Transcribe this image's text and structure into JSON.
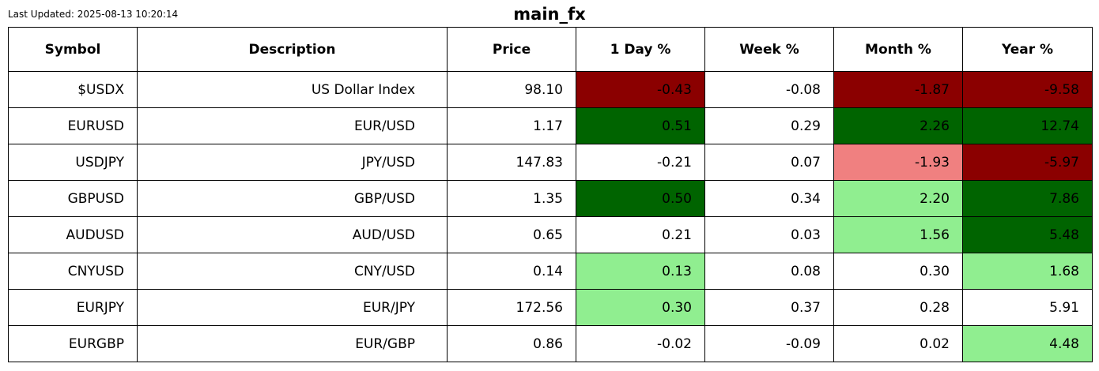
{
  "updated": "Last Updated: 2025-08-13 10:20:14",
  "title": "main_fx",
  "colors": {
    "dark_red": "#8b0000",
    "light_red": "#f08080",
    "dark_green": "#006400",
    "light_green": "#90ee90",
    "none": "#ffffff"
  },
  "chart_data": {
    "type": "table",
    "title": "main_fx",
    "columns": [
      "Symbol",
      "Description",
      "Price",
      "1 Day %",
      "Week %",
      "Month %",
      "Year %"
    ],
    "rows": [
      {
        "cells": [
          "$USDX",
          "US Dollar Index",
          "98.10",
          "-0.43",
          "-0.08",
          "-1.87",
          "-9.58"
        ],
        "fills": [
          "none",
          "none",
          "none",
          "dark_red",
          "none",
          "dark_red",
          "dark_red"
        ]
      },
      {
        "cells": [
          "EURUSD",
          "EUR/USD",
          "1.17",
          "0.51",
          "0.29",
          "2.26",
          "12.74"
        ],
        "fills": [
          "none",
          "none",
          "none",
          "dark_green",
          "none",
          "dark_green",
          "dark_green"
        ]
      },
      {
        "cells": [
          "USDJPY",
          "JPY/USD",
          "147.83",
          "-0.21",
          "0.07",
          "-1.93",
          "-5.97"
        ],
        "fills": [
          "none",
          "none",
          "none",
          "none",
          "none",
          "light_red",
          "dark_red"
        ]
      },
      {
        "cells": [
          "GBPUSD",
          "GBP/USD",
          "1.35",
          "0.50",
          "0.34",
          "2.20",
          "7.86"
        ],
        "fills": [
          "none",
          "none",
          "none",
          "dark_green",
          "none",
          "light_green",
          "dark_green"
        ]
      },
      {
        "cells": [
          "AUDUSD",
          "AUD/USD",
          "0.65",
          "0.21",
          "0.03",
          "1.56",
          "5.48"
        ],
        "fills": [
          "none",
          "none",
          "none",
          "none",
          "none",
          "light_green",
          "dark_green"
        ]
      },
      {
        "cells": [
          "CNYUSD",
          "CNY/USD",
          "0.14",
          "0.13",
          "0.08",
          "0.30",
          "1.68"
        ],
        "fills": [
          "none",
          "none",
          "none",
          "light_green",
          "none",
          "none",
          "light_green"
        ]
      },
      {
        "cells": [
          "EURJPY",
          "EUR/JPY",
          "172.56",
          "0.30",
          "0.37",
          "0.28",
          "5.91"
        ],
        "fills": [
          "none",
          "none",
          "none",
          "light_green",
          "none",
          "none",
          "none"
        ]
      },
      {
        "cells": [
          "EURGBP",
          "EUR/GBP",
          "0.86",
          "-0.02",
          "-0.09",
          "0.02",
          "4.48"
        ],
        "fills": [
          "none",
          "none",
          "none",
          "none",
          "none",
          "none",
          "light_green"
        ]
      }
    ]
  }
}
